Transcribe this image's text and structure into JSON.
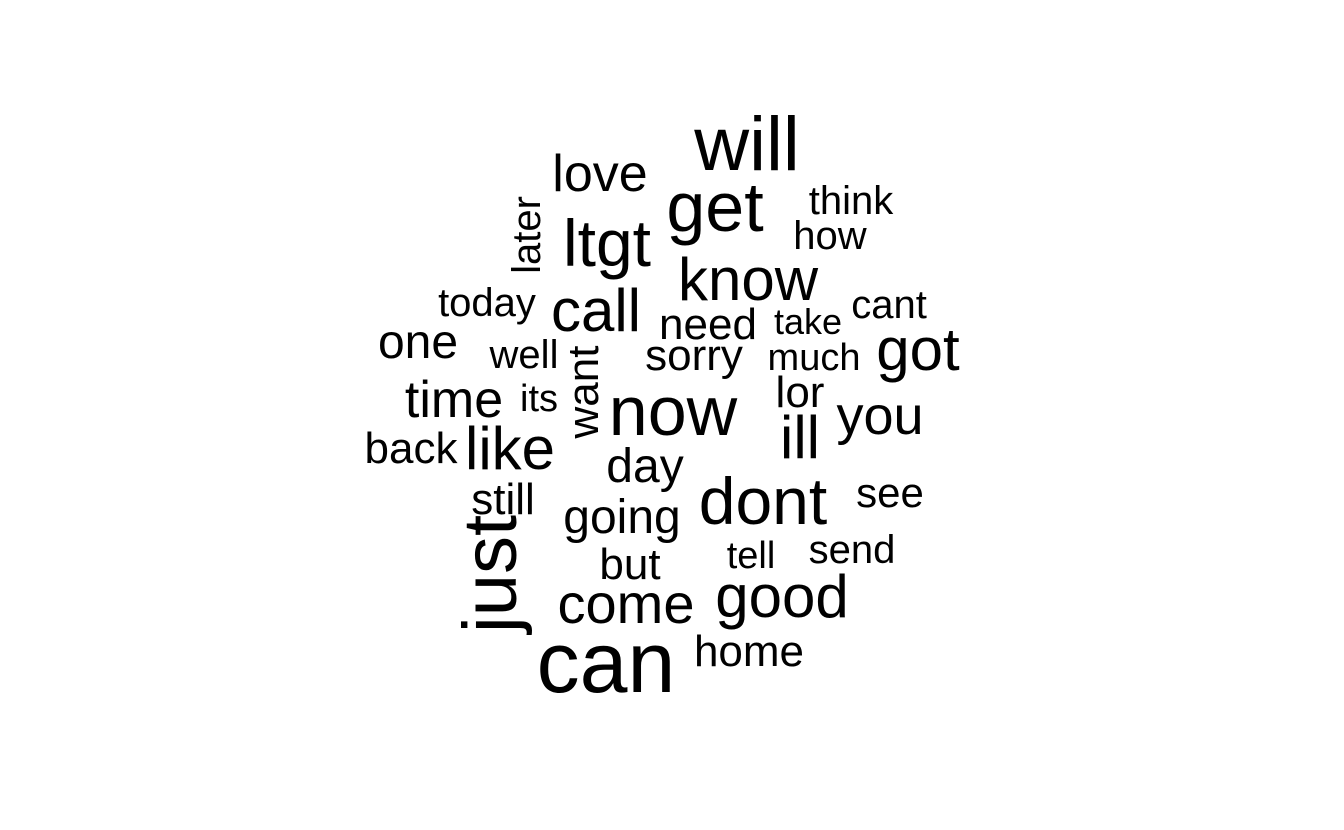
{
  "background_color": "#ffffff",
  "text_color": "#000000",
  "words": [
    {
      "id": "will",
      "text": "will"
    },
    {
      "id": "love",
      "text": "love"
    },
    {
      "id": "get",
      "text": "get"
    },
    {
      "id": "think",
      "text": "think"
    },
    {
      "id": "how",
      "text": "how"
    },
    {
      "id": "later",
      "text": "later"
    },
    {
      "id": "ltgt",
      "text": "ltgt"
    },
    {
      "id": "know",
      "text": "know"
    },
    {
      "id": "today",
      "text": "today"
    },
    {
      "id": "call",
      "text": "call"
    },
    {
      "id": "cant",
      "text": "cant"
    },
    {
      "id": "need",
      "text": "need"
    },
    {
      "id": "take",
      "text": "take"
    },
    {
      "id": "one",
      "text": "one"
    },
    {
      "id": "well",
      "text": "well"
    },
    {
      "id": "want",
      "text": "want"
    },
    {
      "id": "sorry",
      "text": "sorry"
    },
    {
      "id": "much",
      "text": "much"
    },
    {
      "id": "got",
      "text": "got"
    },
    {
      "id": "time",
      "text": "time"
    },
    {
      "id": "its",
      "text": "its"
    },
    {
      "id": "now",
      "text": "now"
    },
    {
      "id": "lor",
      "text": "lor"
    },
    {
      "id": "you",
      "text": "you"
    },
    {
      "id": "back",
      "text": "back"
    },
    {
      "id": "like",
      "text": "like"
    },
    {
      "id": "ill",
      "text": "ill"
    },
    {
      "id": "day",
      "text": "day"
    },
    {
      "id": "still",
      "text": "still"
    },
    {
      "id": "dont",
      "text": "dont"
    },
    {
      "id": "see",
      "text": "see"
    },
    {
      "id": "going",
      "text": "going"
    },
    {
      "id": "just",
      "text": "just"
    },
    {
      "id": "but",
      "text": "but"
    },
    {
      "id": "tell",
      "text": "tell"
    },
    {
      "id": "send",
      "text": "send"
    },
    {
      "id": "come",
      "text": "come"
    },
    {
      "id": "good",
      "text": "good"
    },
    {
      "id": "can",
      "text": "can"
    },
    {
      "id": "home",
      "text": "home"
    }
  ]
}
